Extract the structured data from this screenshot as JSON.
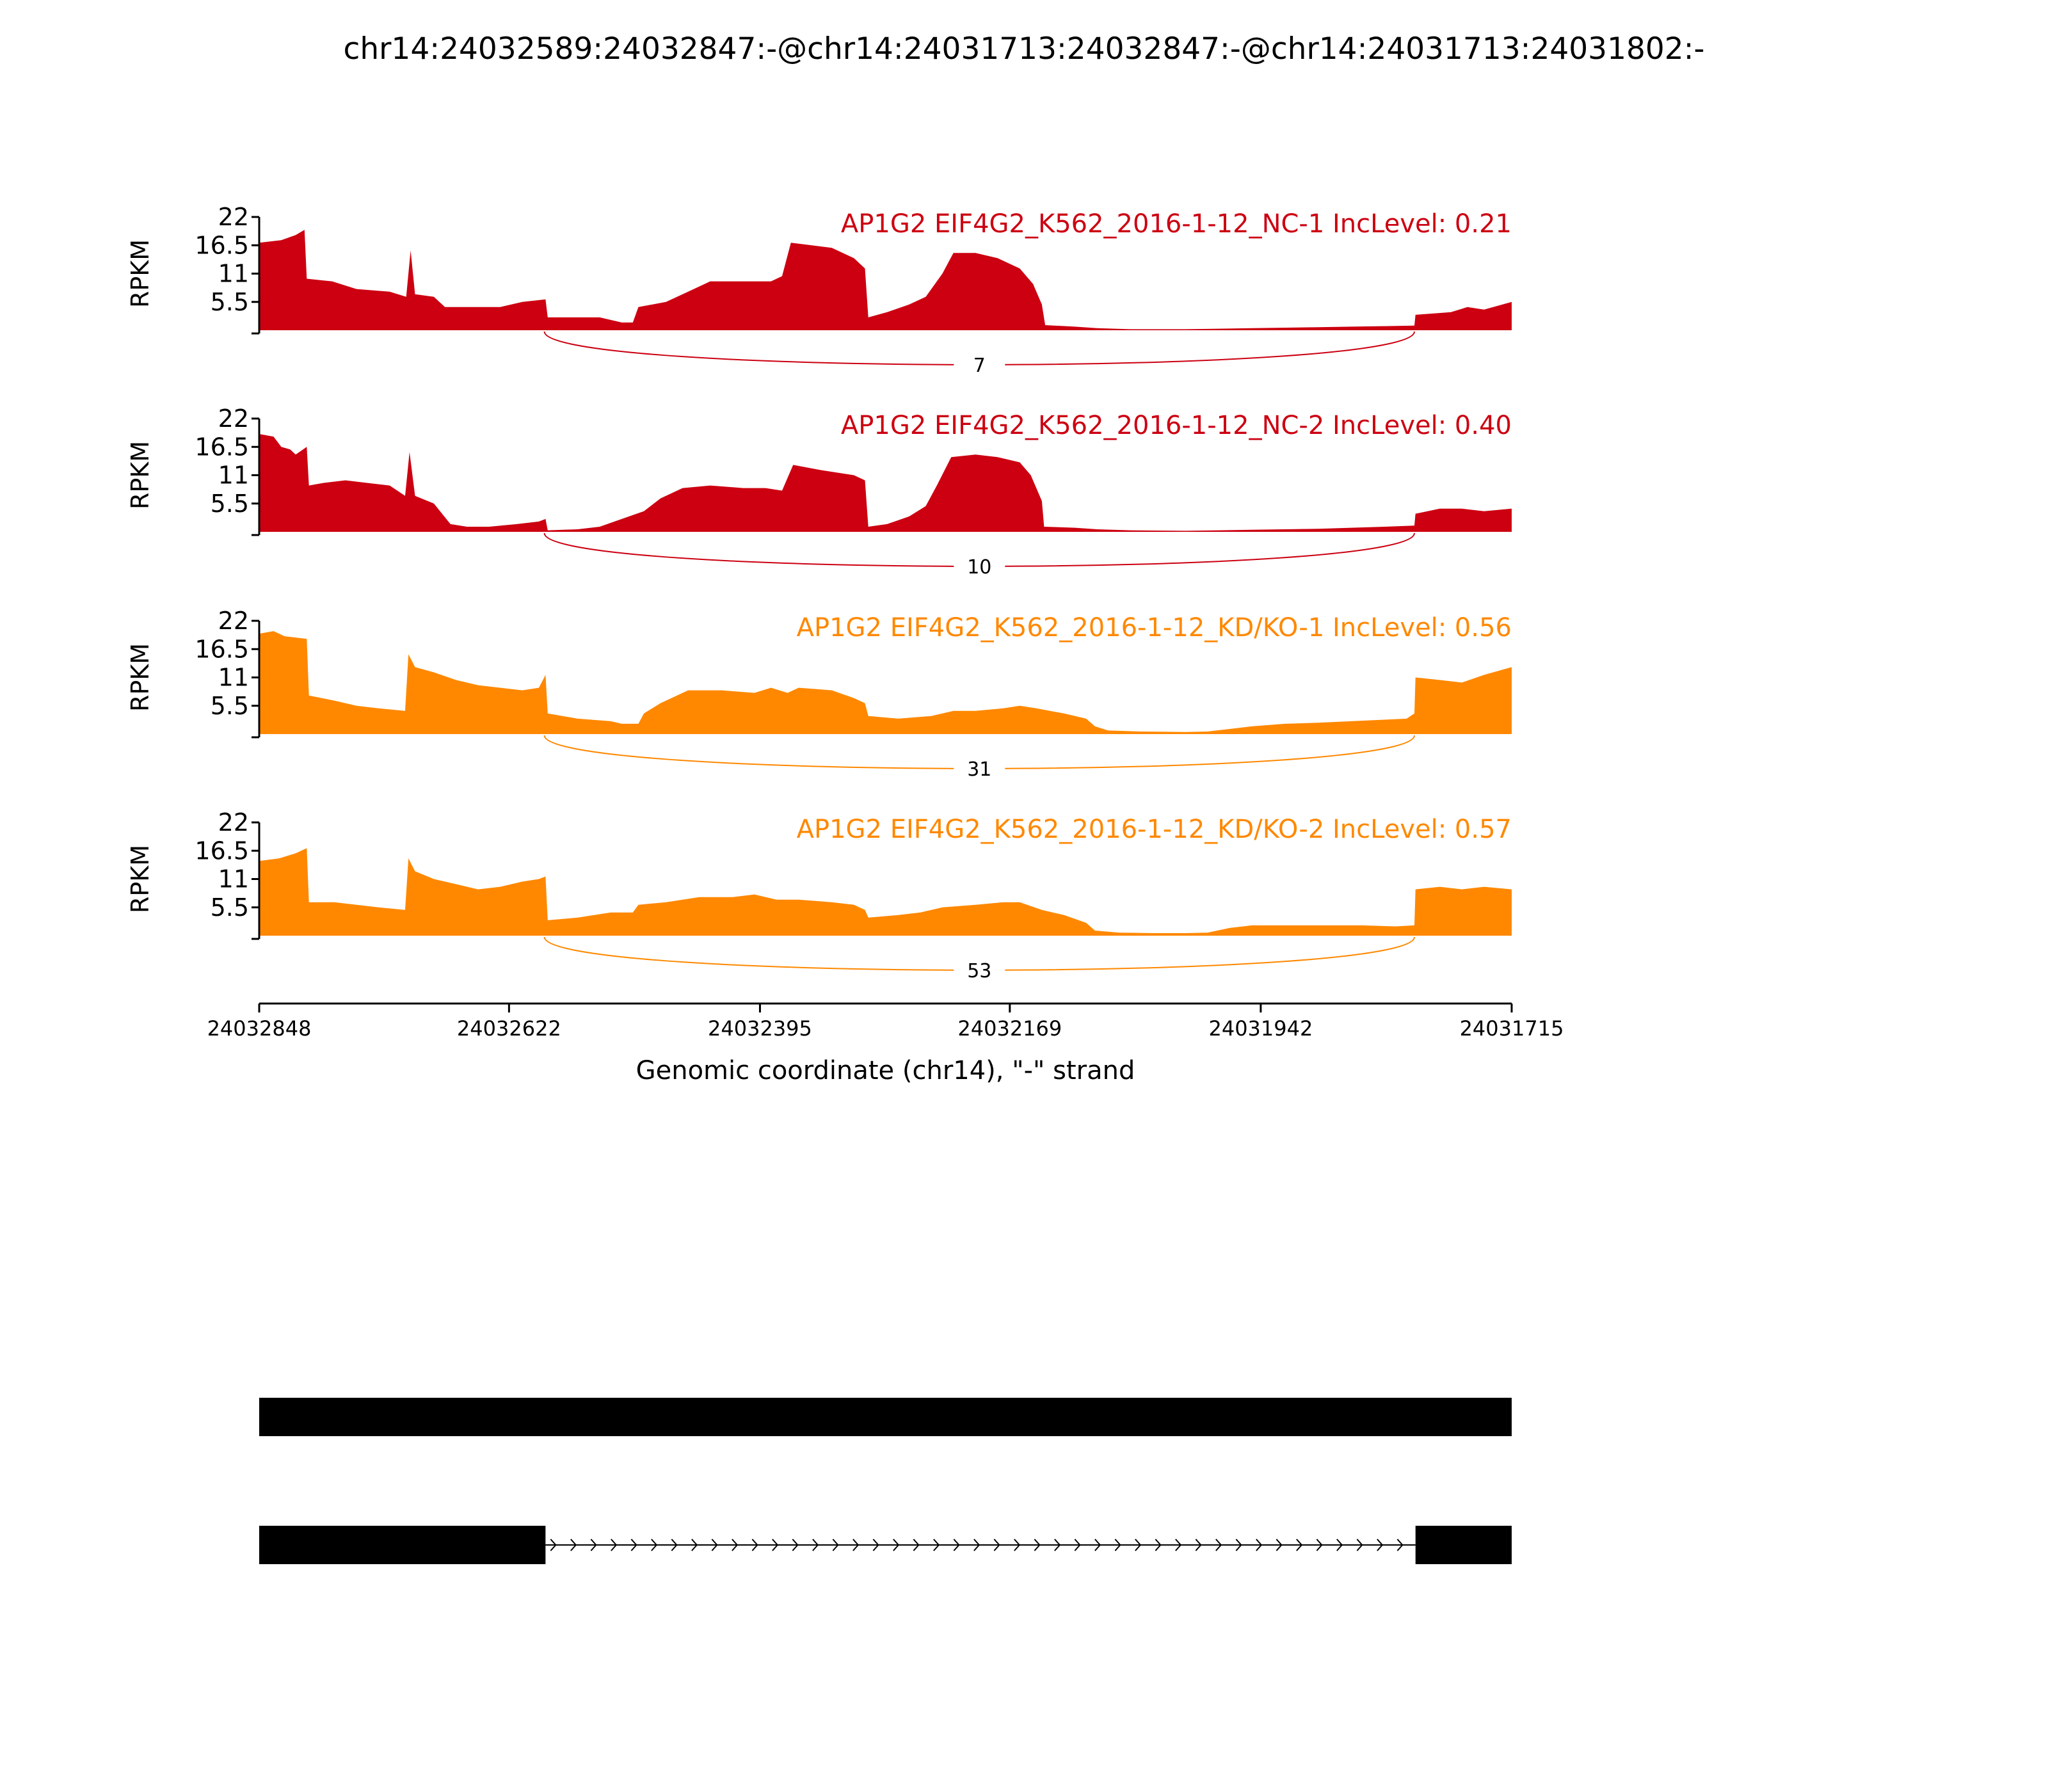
{
  "title": "chr14:24032589:24032847:-@chr14:24031713:24032847:-@chr14:24031713:24031802:-",
  "chart_data": {
    "type": "area",
    "title": "chr14:24032589:24032847:-@chr14:24031713:24032847:-@chr14:24031713:24031802:-",
    "ylabel": "RPKM",
    "xlabel": "Genomic coordinate (chr14), \"-\" strand",
    "xlim": [
      24032848,
      24031715
    ],
    "xticks": [
      "24032848",
      "24032622",
      "24032395",
      "24032169",
      "24031942",
      "24031715"
    ],
    "ylim": [
      0,
      22
    ],
    "yticks": [
      "5.5",
      "11",
      "16.5",
      "22"
    ],
    "junction": {
      "from": 24032590,
      "to": 24031803
    },
    "series": [
      {
        "label": "AP1G2 EIF4G2_K562_2016-1-12_NC-1 IncLevel: 0.21",
        "color": "#cc0011",
        "junction_count": "7",
        "profile": [
          [
            24032848,
            17
          ],
          [
            24032828,
            17.5
          ],
          [
            24032815,
            18.5
          ],
          [
            24032807,
            19.5
          ],
          [
            24032805,
            10
          ],
          [
            24032782,
            9.5
          ],
          [
            24032760,
            8
          ],
          [
            24032730,
            7.5
          ],
          [
            24032715,
            6.5
          ],
          [
            24032711,
            15.5
          ],
          [
            24032707,
            7
          ],
          [
            24032690,
            6.5
          ],
          [
            24032680,
            4.5
          ],
          [
            24032650,
            4.5
          ],
          [
            24032630,
            4.5
          ],
          [
            24032610,
            5.5
          ],
          [
            24032589,
            6
          ],
          [
            24032587,
            2.5
          ],
          [
            24032560,
            2.5
          ],
          [
            24032540,
            2.5
          ],
          [
            24032520,
            1.5
          ],
          [
            24032510,
            1.5
          ],
          [
            24032505,
            4.5
          ],
          [
            24032480,
            5.5
          ],
          [
            24032460,
            7.5
          ],
          [
            24032440,
            9.5
          ],
          [
            24032400,
            9.5
          ],
          [
            24032385,
            9.5
          ],
          [
            24032375,
            10.5
          ],
          [
            24032367,
            17
          ],
          [
            24032330,
            16
          ],
          [
            24032310,
            14
          ],
          [
            24032300,
            12
          ],
          [
            24032297,
            2.5
          ],
          [
            24032280,
            3.5
          ],
          [
            24032260,
            5
          ],
          [
            24032245,
            6.5
          ],
          [
            24032230,
            11
          ],
          [
            24032220,
            15
          ],
          [
            24032200,
            15
          ],
          [
            24032180,
            14
          ],
          [
            24032160,
            12
          ],
          [
            24032148,
            9
          ],
          [
            24032140,
            5
          ],
          [
            24032137,
            1
          ],
          [
            24032110,
            0.7
          ],
          [
            24032090,
            0.4
          ],
          [
            24032060,
            0.2
          ],
          [
            24032010,
            0.2
          ],
          [
            24031980,
            0.3
          ],
          [
            24031950,
            0.4
          ],
          [
            24031920,
            0.5
          ],
          [
            24031890,
            0.6
          ],
          [
            24031860,
            0.7
          ],
          [
            24031830,
            0.8
          ],
          [
            24031803,
            0.9
          ],
          [
            24031802,
            3
          ],
          [
            24031770,
            3.5
          ],
          [
            24031755,
            4.5
          ],
          [
            24031740,
            4
          ],
          [
            24031715,
            5.5
          ]
        ]
      },
      {
        "label": "AP1G2 EIF4G2_K562_2016-1-12_NC-2 IncLevel: 0.40",
        "color": "#cc0011",
        "junction_count": "10",
        "profile": [
          [
            24032848,
            19
          ],
          [
            24032835,
            18.5
          ],
          [
            24032828,
            16.5
          ],
          [
            24032820,
            16
          ],
          [
            24032815,
            15
          ],
          [
            24032805,
            16.5
          ],
          [
            24032803,
            9
          ],
          [
            24032790,
            9.5
          ],
          [
            24032770,
            10
          ],
          [
            24032750,
            9.5
          ],
          [
            24032730,
            9
          ],
          [
            24032716,
            7
          ],
          [
            24032712,
            15.5
          ],
          [
            24032707,
            7
          ],
          [
            24032690,
            5.5
          ],
          [
            24032675,
            1.5
          ],
          [
            24032660,
            1
          ],
          [
            24032640,
            1
          ],
          [
            24032615,
            1.5
          ],
          [
            24032595,
            2
          ],
          [
            24032589,
            2.5
          ],
          [
            24032587,
            0.3
          ],
          [
            24032560,
            0.5
          ],
          [
            24032540,
            1
          ],
          [
            24032520,
            2.5
          ],
          [
            24032500,
            4
          ],
          [
            24032485,
            6.5
          ],
          [
            24032465,
            8.5
          ],
          [
            24032440,
            9
          ],
          [
            24032410,
            8.5
          ],
          [
            24032390,
            8.5
          ],
          [
            24032375,
            8
          ],
          [
            24032365,
            13
          ],
          [
            24032340,
            12
          ],
          [
            24032310,
            11
          ],
          [
            24032300,
            10
          ],
          [
            24032297,
            1
          ],
          [
            24032280,
            1.5
          ],
          [
            24032260,
            3
          ],
          [
            24032245,
            5
          ],
          [
            24032235,
            9
          ],
          [
            24032222,
            14.5
          ],
          [
            24032200,
            15
          ],
          [
            24032180,
            14.5
          ],
          [
            24032160,
            13.5
          ],
          [
            24032150,
            11
          ],
          [
            24032140,
            6
          ],
          [
            24032138,
            1
          ],
          [
            24032110,
            0.8
          ],
          [
            24032090,
            0.5
          ],
          [
            24032060,
            0.3
          ],
          [
            24032010,
            0.2
          ],
          [
            24031980,
            0.3
          ],
          [
            24031950,
            0.4
          ],
          [
            24031920,
            0.5
          ],
          [
            24031890,
            0.6
          ],
          [
            24031860,
            0.8
          ],
          [
            24031830,
            1
          ],
          [
            24031803,
            1.2
          ],
          [
            24031802,
            3.5
          ],
          [
            24031780,
            4.5
          ],
          [
            24031760,
            4.5
          ],
          [
            24031740,
            4
          ],
          [
            24031715,
            4.5
          ]
        ]
      },
      {
        "label": "AP1G2 EIF4G2_K562_2016-1-12_KD/KO-1 IncLevel: 0.56",
        "color": "#ff8800",
        "junction_count": "31",
        "profile": [
          [
            24032848,
            19.5
          ],
          [
            24032835,
            20
          ],
          [
            24032825,
            19
          ],
          [
            24032805,
            18.5
          ],
          [
            24032803,
            7.5
          ],
          [
            24032780,
            6.5
          ],
          [
            24032760,
            5.5
          ],
          [
            24032740,
            5
          ],
          [
            24032716,
            4.5
          ],
          [
            24032713,
            15.5
          ],
          [
            24032707,
            13
          ],
          [
            24032690,
            12
          ],
          [
            24032670,
            10.5
          ],
          [
            24032650,
            9.5
          ],
          [
            24032630,
            9
          ],
          [
            24032610,
            8.5
          ],
          [
            24032595,
            9
          ],
          [
            24032589,
            11.5
          ],
          [
            24032587,
            4
          ],
          [
            24032560,
            3
          ],
          [
            24032530,
            2.5
          ],
          [
            24032520,
            2
          ],
          [
            24032505,
            2
          ],
          [
            24032500,
            4
          ],
          [
            24032485,
            6
          ],
          [
            24032460,
            8.5
          ],
          [
            24032430,
            8.5
          ],
          [
            24032400,
            8
          ],
          [
            24032385,
            9
          ],
          [
            24032370,
            8
          ],
          [
            24032360,
            9
          ],
          [
            24032330,
            8.5
          ],
          [
            24032310,
            7
          ],
          [
            24032300,
            6
          ],
          [
            24032297,
            3.5
          ],
          [
            24032270,
            3
          ],
          [
            24032240,
            3.5
          ],
          [
            24032220,
            4.5
          ],
          [
            24032200,
            4.5
          ],
          [
            24032175,
            5
          ],
          [
            24032160,
            5.5
          ],
          [
            24032145,
            5
          ],
          [
            24032120,
            4
          ],
          [
            24032100,
            3
          ],
          [
            24032092,
            1.5
          ],
          [
            24032080,
            0.7
          ],
          [
            24032050,
            0.5
          ],
          [
            24032010,
            0.4
          ],
          [
            24031990,
            0.5
          ],
          [
            24031970,
            1
          ],
          [
            24031950,
            1.5
          ],
          [
            24031920,
            2
          ],
          [
            24031890,
            2.2
          ],
          [
            24031860,
            2.5
          ],
          [
            24031830,
            2.8
          ],
          [
            24031810,
            3
          ],
          [
            24031803,
            4
          ],
          [
            24031802,
            11
          ],
          [
            24031780,
            10.5
          ],
          [
            24031760,
            10
          ],
          [
            24031740,
            11.5
          ],
          [
            24031715,
            13
          ]
        ]
      },
      {
        "label": "AP1G2 EIF4G2_K562_2016-1-12_KD/KO-2 IncLevel: 0.57",
        "color": "#ff8800",
        "junction_count": "53",
        "profile": [
          [
            24032848,
            14.5
          ],
          [
            24032830,
            15
          ],
          [
            24032815,
            16
          ],
          [
            24032805,
            17
          ],
          [
            24032803,
            6.5
          ],
          [
            24032780,
            6.5
          ],
          [
            24032760,
            6
          ],
          [
            24032740,
            5.5
          ],
          [
            24032716,
            5
          ],
          [
            24032713,
            15
          ],
          [
            24032707,
            12.5
          ],
          [
            24032690,
            11
          ],
          [
            24032670,
            10
          ],
          [
            24032650,
            9
          ],
          [
            24032630,
            9.5
          ],
          [
            24032610,
            10.5
          ],
          [
            24032595,
            11
          ],
          [
            24032589,
            11.5
          ],
          [
            24032587,
            3
          ],
          [
            24032560,
            3.5
          ],
          [
            24032530,
            4.5
          ],
          [
            24032510,
            4.5
          ],
          [
            24032505,
            6
          ],
          [
            24032480,
            6.5
          ],
          [
            24032450,
            7.5
          ],
          [
            24032420,
            7.5
          ],
          [
            24032400,
            8
          ],
          [
            24032380,
            7
          ],
          [
            24032360,
            7
          ],
          [
            24032330,
            6.5
          ],
          [
            24032310,
            6
          ],
          [
            24032300,
            5
          ],
          [
            24032297,
            3.5
          ],
          [
            24032270,
            4
          ],
          [
            24032250,
            4.5
          ],
          [
            24032230,
            5.5
          ],
          [
            24032200,
            6
          ],
          [
            24032175,
            6.5
          ],
          [
            24032160,
            6.5
          ],
          [
            24032140,
            5
          ],
          [
            24032120,
            4
          ],
          [
            24032100,
            2.5
          ],
          [
            24032092,
            1
          ],
          [
            24032070,
            0.6
          ],
          [
            24032040,
            0.5
          ],
          [
            24032010,
            0.5
          ],
          [
            24031990,
            0.6
          ],
          [
            24031970,
            1.5
          ],
          [
            24031950,
            2
          ],
          [
            24031920,
            2
          ],
          [
            24031880,
            2
          ],
          [
            24031850,
            2
          ],
          [
            24031820,
            1.8
          ],
          [
            24031803,
            2
          ],
          [
            24031802,
            9
          ],
          [
            24031780,
            9.5
          ],
          [
            24031760,
            9
          ],
          [
            24031740,
            9.5
          ],
          [
            24031715,
            9
          ]
        ]
      }
    ],
    "isoforms": [
      {
        "exons": [
          [
            24032848,
            24031715
          ]
        ]
      },
      {
        "exons": [
          [
            24032848,
            24032589
          ],
          [
            24031802,
            24031715
          ]
        ]
      }
    ]
  }
}
